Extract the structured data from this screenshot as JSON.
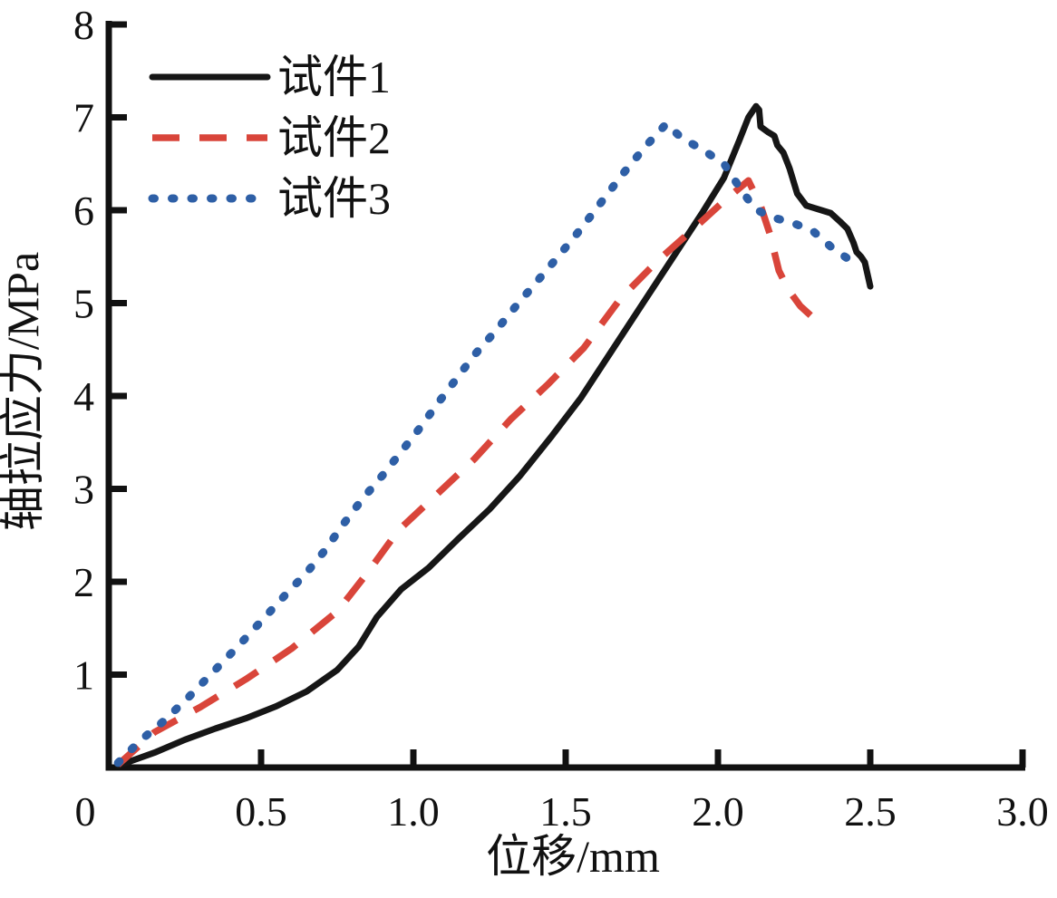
{
  "figure": {
    "background": "#ffffff",
    "axis_color": "#111111"
  },
  "chart_data": {
    "type": "line",
    "title": "",
    "xlabel": "位移/mm",
    "ylabel": "轴拉应力/MPa",
    "xlim": [
      0,
      3.0
    ],
    "ylim": [
      0,
      8
    ],
    "grid": false,
    "legend_position": "upper-left",
    "origin_label": "0",
    "x_ticks": [
      0.5,
      1.0,
      1.5,
      2.0,
      2.5,
      3.0
    ],
    "x_tick_labels": [
      "0.5",
      "1.0",
      "1.5",
      "2.0",
      "2.5",
      "3.0"
    ],
    "y_ticks": [
      1,
      2,
      3,
      4,
      5,
      6,
      7,
      8
    ],
    "y_tick_labels": [
      "1",
      "2",
      "3",
      "4",
      "5",
      "6",
      "7",
      "8"
    ],
    "series": [
      {
        "name": "试件1",
        "style": "solid",
        "color": "#161616",
        "peak": {
          "x": 2.12,
          "y": 7.12
        },
        "points": [
          [
            0.03,
            0.02
          ],
          [
            0.15,
            0.16
          ],
          [
            0.25,
            0.3
          ],
          [
            0.35,
            0.42
          ],
          [
            0.45,
            0.53
          ],
          [
            0.55,
            0.66
          ],
          [
            0.65,
            0.82
          ],
          [
            0.75,
            1.05
          ],
          [
            0.82,
            1.3
          ],
          [
            0.88,
            1.62
          ],
          [
            0.96,
            1.92
          ],
          [
            1.05,
            2.15
          ],
          [
            1.15,
            2.47
          ],
          [
            1.25,
            2.78
          ],
          [
            1.35,
            3.14
          ],
          [
            1.45,
            3.55
          ],
          [
            1.55,
            3.98
          ],
          [
            1.65,
            4.48
          ],
          [
            1.75,
            4.98
          ],
          [
            1.85,
            5.48
          ],
          [
            1.95,
            5.98
          ],
          [
            2.02,
            6.35
          ],
          [
            2.07,
            6.75
          ],
          [
            2.1,
            7.0
          ],
          [
            2.125,
            7.12
          ],
          [
            2.135,
            7.08
          ],
          [
            2.14,
            6.9
          ],
          [
            2.165,
            6.84
          ],
          [
            2.185,
            6.8
          ],
          [
            2.195,
            6.7
          ],
          [
            2.215,
            6.62
          ],
          [
            2.235,
            6.45
          ],
          [
            2.26,
            6.18
          ],
          [
            2.29,
            6.05
          ],
          [
            2.33,
            6.01
          ],
          [
            2.37,
            5.97
          ],
          [
            2.4,
            5.88
          ],
          [
            2.425,
            5.8
          ],
          [
            2.445,
            5.65
          ],
          [
            2.455,
            5.55
          ],
          [
            2.47,
            5.5
          ],
          [
            2.482,
            5.44
          ],
          [
            2.5,
            5.18
          ]
        ]
      },
      {
        "name": "试件2",
        "style": "dashed",
        "color": "#d9453a",
        "peak": {
          "x": 2.1,
          "y": 6.32
        },
        "points": [
          [
            0.03,
            0.03
          ],
          [
            0.15,
            0.38
          ],
          [
            0.3,
            0.65
          ],
          [
            0.45,
            0.95
          ],
          [
            0.6,
            1.28
          ],
          [
            0.75,
            1.68
          ],
          [
            0.85,
            2.1
          ],
          [
            0.95,
            2.55
          ],
          [
            1.08,
            2.95
          ],
          [
            1.2,
            3.32
          ],
          [
            1.32,
            3.75
          ],
          [
            1.44,
            4.12
          ],
          [
            1.56,
            4.52
          ],
          [
            1.68,
            5.05
          ],
          [
            1.8,
            5.45
          ],
          [
            1.92,
            5.8
          ],
          [
            2.02,
            6.1
          ],
          [
            2.1,
            6.32
          ],
          [
            2.14,
            6.05
          ],
          [
            2.17,
            5.75
          ],
          [
            2.2,
            5.35
          ],
          [
            2.23,
            5.15
          ],
          [
            2.27,
            4.97
          ],
          [
            2.31,
            4.85
          ],
          [
            2.35,
            4.76
          ]
        ]
      },
      {
        "name": "试件3",
        "style": "dotted",
        "color": "#2e5fa6",
        "peak": {
          "x": 1.83,
          "y": 6.93
        },
        "points": [
          [
            0.03,
            0.05
          ],
          [
            0.1,
            0.28
          ],
          [
            0.18,
            0.5
          ],
          [
            0.26,
            0.75
          ],
          [
            0.34,
            1.02
          ],
          [
            0.44,
            1.36
          ],
          [
            0.51,
            1.61
          ],
          [
            0.58,
            1.86
          ],
          [
            0.65,
            2.1
          ],
          [
            0.71,
            2.34
          ],
          [
            0.77,
            2.62
          ],
          [
            0.83,
            2.88
          ],
          [
            0.9,
            3.15
          ],
          [
            0.96,
            3.4
          ],
          [
            1.02,
            3.65
          ],
          [
            1.08,
            3.92
          ],
          [
            1.14,
            4.18
          ],
          [
            1.2,
            4.44
          ],
          [
            1.27,
            4.7
          ],
          [
            1.34,
            4.98
          ],
          [
            1.41,
            5.25
          ],
          [
            1.48,
            5.52
          ],
          [
            1.55,
            5.8
          ],
          [
            1.62,
            6.1
          ],
          [
            1.69,
            6.4
          ],
          [
            1.76,
            6.68
          ],
          [
            1.83,
            6.93
          ],
          [
            1.88,
            6.78
          ],
          [
            1.95,
            6.65
          ],
          [
            2.02,
            6.5
          ],
          [
            2.07,
            6.25
          ],
          [
            2.12,
            6.02
          ],
          [
            2.17,
            5.93
          ],
          [
            2.24,
            5.87
          ],
          [
            2.31,
            5.78
          ],
          [
            2.38,
            5.58
          ],
          [
            2.44,
            5.45
          ],
          [
            2.47,
            5.4
          ]
        ]
      }
    ]
  }
}
